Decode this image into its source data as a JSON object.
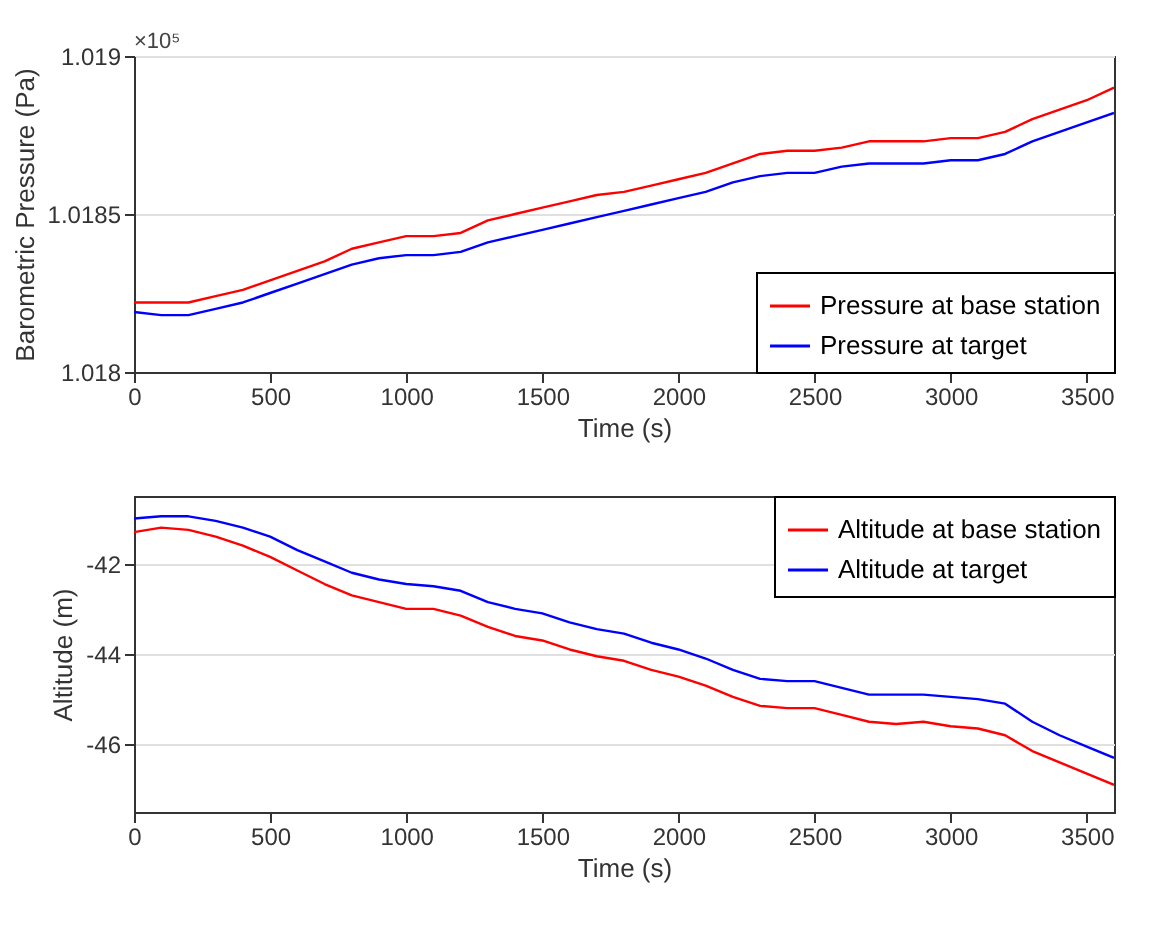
{
  "chart_data": [
    {
      "type": "line",
      "xlabel": "Time (s)",
      "ylabel": "Barometric Pressure (Pa)",
      "annotations": [
        "×10⁵"
      ],
      "x": [
        0,
        100,
        200,
        300,
        400,
        500,
        600,
        700,
        800,
        900,
        1000,
        1100,
        1200,
        1300,
        1400,
        1500,
        1600,
        1700,
        1800,
        1900,
        2000,
        2100,
        2200,
        2300,
        2400,
        2500,
        2600,
        2700,
        2800,
        2900,
        3000,
        3100,
        3200,
        3300,
        3400,
        3500,
        3600
      ],
      "xlim": [
        0,
        3600
      ],
      "xticks": [
        0,
        500,
        1000,
        1500,
        2000,
        2500,
        3000,
        3500
      ],
      "ylim": [
        1.018,
        1.019
      ],
      "yticks": [
        1.018,
        1.0185,
        1.019
      ],
      "grid": "y",
      "legend": "bottom right",
      "line_style": "solid",
      "series": [
        {
          "name": "Pressure at base station",
          "color": "#ff0000",
          "values": [
            1.01822,
            1.01822,
            1.01822,
            1.01824,
            1.01826,
            1.01829,
            1.01832,
            1.01835,
            1.01839,
            1.01841,
            1.01843,
            1.01843,
            1.01844,
            1.01848,
            1.0185,
            1.01852,
            1.01854,
            1.01856,
            1.01857,
            1.01859,
            1.01861,
            1.01863,
            1.01866,
            1.01869,
            1.0187,
            1.0187,
            1.01871,
            1.01873,
            1.01873,
            1.01873,
            1.01874,
            1.01874,
            1.01876,
            1.0188,
            1.01883,
            1.01886,
            1.0189
          ]
        },
        {
          "name": "Pressure at target",
          "color": "#0000ff",
          "values": [
            1.01819,
            1.01818,
            1.01818,
            1.0182,
            1.01822,
            1.01825,
            1.01828,
            1.01831,
            1.01834,
            1.01836,
            1.01837,
            1.01837,
            1.01838,
            1.01841,
            1.01843,
            1.01845,
            1.01847,
            1.01849,
            1.01851,
            1.01853,
            1.01855,
            1.01857,
            1.0186,
            1.01862,
            1.01863,
            1.01863,
            1.01865,
            1.01866,
            1.01866,
            1.01866,
            1.01867,
            1.01867,
            1.01869,
            1.01873,
            1.01876,
            1.01879,
            1.01882
          ]
        }
      ]
    },
    {
      "type": "line",
      "xlabel": "Time (s)",
      "ylabel": "Altitude (m)",
      "x": [
        0,
        100,
        200,
        300,
        400,
        500,
        600,
        700,
        800,
        900,
        1000,
        1100,
        1200,
        1300,
        1400,
        1500,
        1600,
        1700,
        1800,
        1900,
        2000,
        2100,
        2200,
        2300,
        2400,
        2500,
        2600,
        2700,
        2800,
        2900,
        3000,
        3100,
        3200,
        3300,
        3400,
        3500,
        3600
      ],
      "xlim": [
        0,
        3600
      ],
      "xticks": [
        0,
        500,
        1000,
        1500,
        2000,
        2500,
        3000,
        3500
      ],
      "ylim": [
        -47.5,
        -40.5
      ],
      "yticks": [
        -46,
        -44,
        -42
      ],
      "grid": "y",
      "legend": "top right",
      "line_style": "solid",
      "series": [
        {
          "name": "Altitude at base station",
          "color": "#ff0000",
          "values": [
            -41.3,
            -41.2,
            -41.25,
            -41.4,
            -41.6,
            -41.85,
            -42.15,
            -42.45,
            -42.7,
            -42.85,
            -43.0,
            -43.0,
            -43.15,
            -43.4,
            -43.6,
            -43.7,
            -43.9,
            -44.05,
            -44.15,
            -44.35,
            -44.5,
            -44.7,
            -44.95,
            -45.15,
            -45.2,
            -45.2,
            -45.35,
            -45.5,
            -45.55,
            -45.5,
            -45.6,
            -45.65,
            -45.8,
            -46.15,
            -46.4,
            -46.65,
            -46.9
          ]
        },
        {
          "name": "Altitude at target",
          "color": "#0000ff",
          "values": [
            -41.0,
            -40.95,
            -40.95,
            -41.05,
            -41.2,
            -41.4,
            -41.7,
            -41.95,
            -42.2,
            -42.35,
            -42.45,
            -42.5,
            -42.6,
            -42.85,
            -43.0,
            -43.1,
            -43.3,
            -43.45,
            -43.55,
            -43.75,
            -43.9,
            -44.1,
            -44.35,
            -44.55,
            -44.6,
            -44.6,
            -44.75,
            -44.9,
            -44.9,
            -44.9,
            -44.95,
            -45.0,
            -45.1,
            -45.5,
            -45.8,
            -46.05,
            -46.3
          ]
        }
      ]
    }
  ]
}
